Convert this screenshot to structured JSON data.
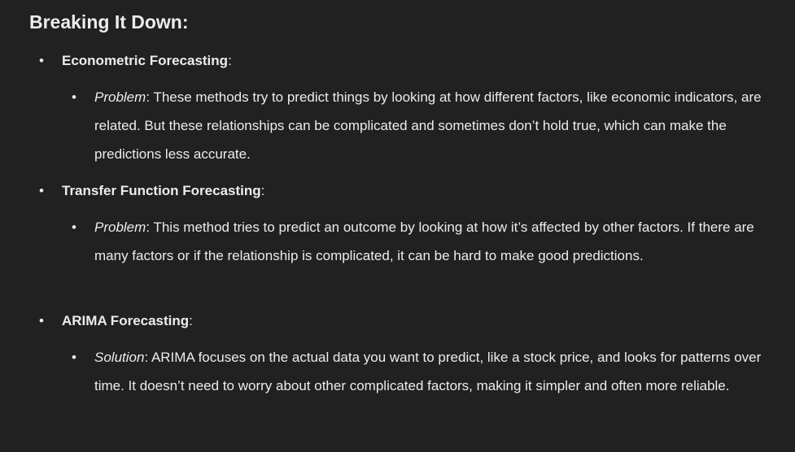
{
  "heading": "Breaking It Down:",
  "bullet_glyph": "•",
  "sections": [
    {
      "title": "Econometric Forecasting",
      "colon": ":",
      "sub_label": "Problem",
      "sub_text": ": These methods try to predict things by looking at how different factors, like economic indicators, are related. But these relationships can be complicated and sometimes don’t hold true, which can make the predictions less accurate."
    },
    {
      "title": "Transfer Function Forecasting",
      "colon": ":",
      "sub_label": "Problem",
      "sub_text": ": This method tries to predict an outcome by looking at how it’s affected by other factors. If there are many factors or if the relationship is complicated, it can be hard to make good predictions."
    },
    {
      "title": "ARIMA Forecasting",
      "colon": ":",
      "sub_label": "Solution",
      "sub_text": ": ARIMA focuses on the actual data you want to predict, like a stock price, and looks for patterns over time. It doesn’t need to worry about other complicated factors, making it simpler and often more reliable."
    }
  ]
}
